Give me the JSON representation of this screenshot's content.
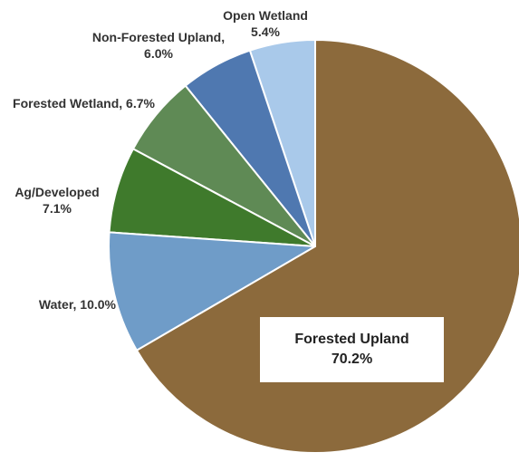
{
  "chart_data": {
    "type": "pie",
    "categories": [
      "Open Wetland",
      "Non-Forested Upland,",
      "Forested Wetland,",
      "Ag/Developed",
      "Water,",
      "Forested Upland"
    ],
    "values": [
      5.4,
      6.0,
      6.7,
      7.1,
      10.0,
      70.2
    ],
    "value_labels": [
      "5.4%",
      "6.0%",
      "6.7%",
      "7.1%",
      "10.0%",
      "70.2%"
    ],
    "colors": [
      "#a9c9ea",
      "#4f78b0",
      "#5f8a55",
      "#3f7a2c",
      "#6f9cc8",
      "#8c6a3c"
    ]
  }
}
